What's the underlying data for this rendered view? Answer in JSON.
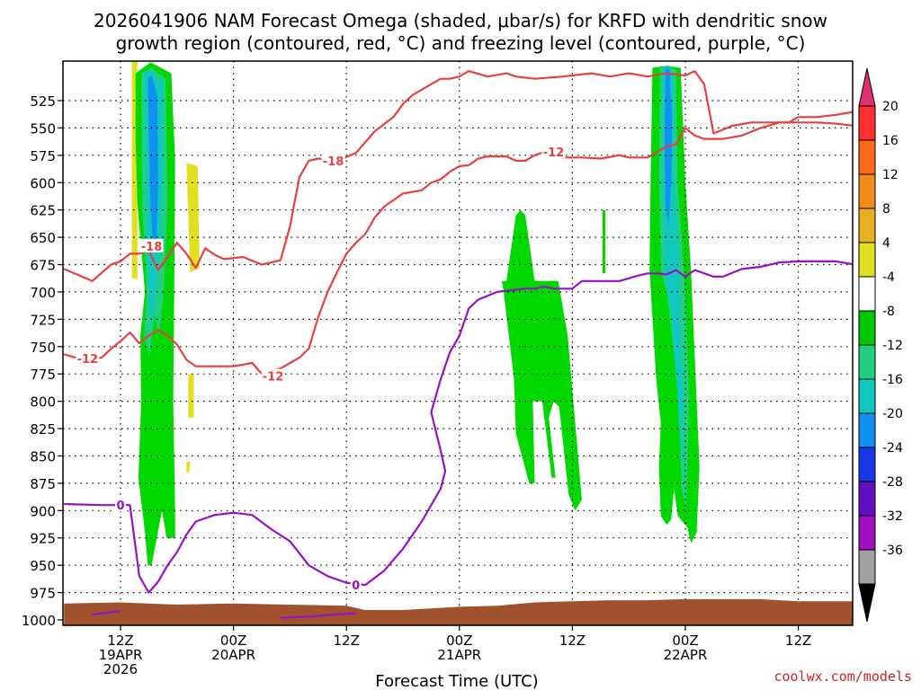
{
  "chart_data": {
    "type": "time-height cross section",
    "title_line1": "2026041906 NAM Forecast Omega (shaded, μbar/s) for KRFD with dendritic snow",
    "title_line2": "growth region (contoured, red, °C) and freezing level (contoured, purple, °C)",
    "xlabel": "Forecast Time (UTC)",
    "credit": "coolwx.com/models",
    "ylim": [
      1000,
      500
    ],
    "xlim_hours": [
      6,
      90
    ],
    "yticks": [
      525,
      550,
      575,
      600,
      625,
      650,
      675,
      700,
      725,
      750,
      775,
      800,
      825,
      850,
      875,
      900,
      925,
      950,
      975,
      1000
    ],
    "xticks": [
      {
        "hour": 12,
        "line1": "12Z",
        "line2": "19APR",
        "line3": "2026"
      },
      {
        "hour": 24,
        "line1": "00Z",
        "line2": "20APR",
        "line3": ""
      },
      {
        "hour": 36,
        "line1": "12Z",
        "line2": "",
        "line3": ""
      },
      {
        "hour": 48,
        "line1": "00Z",
        "line2": "21APR",
        "line3": ""
      },
      {
        "hour": 60,
        "line1": "12Z",
        "line2": "",
        "line3": ""
      },
      {
        "hour": 72,
        "line1": "00Z",
        "line2": "22APR",
        "line3": ""
      },
      {
        "hour": 84,
        "line1": "12Z",
        "line2": "",
        "line3": ""
      }
    ],
    "colorbar": {
      "labels": [
        "20",
        "16",
        "12",
        "8",
        "4",
        "-4",
        "-8",
        "-12",
        "-16",
        "-20",
        "-24",
        "-28",
        "-32",
        "-36"
      ],
      "bins": [
        "#e03070",
        "#ff3030",
        "#ff6a1a",
        "#f08a1a",
        "#e8b020",
        "#e0e020",
        "#ffffff",
        "#00c800",
        "#20d080",
        "#10c8c0",
        "#1090f0",
        "#1838e8",
        "#6010c0",
        "#a010c0",
        "#a0a0a0",
        "#000000"
      ]
    },
    "shading_colors": {
      "green": "#00d800",
      "green2": "#20d080",
      "teal": "#10c8c0",
      "blue": "#1090f0",
      "yellow": "#e0e020",
      "terrain": "#a0522d"
    },
    "contours": {
      "dgz_color": "#e84040",
      "freezing_color": "#9a10c8",
      "labels_red": [
        "-18",
        "-18",
        "-12",
        "-12",
        "-12"
      ],
      "labels_purple": [
        "0",
        "0"
      ],
      "upper_red": [
        [
          6,
          679
        ],
        [
          9,
          690
        ],
        [
          11,
          675
        ],
        [
          12,
          672
        ],
        [
          13,
          665
        ],
        [
          14,
          665
        ],
        [
          15,
          662
        ],
        [
          16,
          680
        ],
        [
          18,
          655
        ],
        [
          19,
          665
        ],
        [
          20,
          678
        ],
        [
          21,
          660
        ],
        [
          22,
          666
        ],
        [
          23,
          670
        ],
        [
          25,
          668
        ],
        [
          27,
          675
        ],
        [
          29,
          671
        ],
        [
          30,
          640
        ],
        [
          31,
          595
        ],
        [
          32,
          580
        ],
        [
          33,
          578
        ],
        [
          35,
          580
        ],
        [
          37,
          573
        ],
        [
          39,
          553
        ],
        [
          41,
          540
        ],
        [
          42,
          528
        ],
        [
          43,
          520
        ],
        [
          45,
          510
        ],
        [
          46,
          505
        ],
        [
          47,
          505
        ],
        [
          48,
          503
        ],
        [
          49,
          498
        ],
        [
          51,
          503
        ],
        [
          53,
          500
        ],
        [
          54,
          503
        ],
        [
          56,
          505
        ],
        [
          59,
          503
        ],
        [
          62,
          500
        ],
        [
          64,
          503
        ],
        [
          66,
          500
        ],
        [
          68,
          503
        ],
        [
          70,
          500
        ],
        [
          72,
          502
        ],
        [
          73,
          498
        ],
        [
          74,
          510
        ],
        [
          75,
          555
        ],
        [
          77,
          548
        ],
        [
          79,
          545
        ],
        [
          81,
          545
        ],
        [
          83,
          545
        ],
        [
          84,
          540
        ],
        [
          86,
          540
        ],
        [
          88,
          538
        ],
        [
          90,
          535
        ]
      ],
      "lower_red": [
        [
          6,
          757
        ],
        [
          8,
          762
        ],
        [
          10,
          760
        ],
        [
          11,
          752
        ],
        [
          12,
          745
        ],
        [
          13,
          737
        ],
        [
          14,
          747
        ],
        [
          15,
          740
        ],
        [
          16,
          735
        ],
        [
          17,
          740
        ],
        [
          18,
          748
        ],
        [
          19,
          762
        ],
        [
          20,
          768
        ],
        [
          22,
          768
        ],
        [
          24,
          768
        ],
        [
          26,
          765
        ],
        [
          27,
          775
        ],
        [
          29,
          770
        ],
        [
          31,
          760
        ],
        [
          32,
          752
        ],
        [
          33,
          723
        ],
        [
          34,
          700
        ],
        [
          35,
          682
        ],
        [
          36,
          665
        ],
        [
          37,
          655
        ],
        [
          38,
          647
        ],
        [
          39,
          632
        ],
        [
          40,
          622
        ],
        [
          42,
          610
        ],
        [
          44,
          607
        ],
        [
          45,
          600
        ],
        [
          46,
          597
        ],
        [
          47,
          590
        ],
        [
          48,
          585
        ],
        [
          49,
          584
        ],
        [
          50,
          578
        ],
        [
          51,
          576
        ],
        [
          53,
          576
        ],
        [
          54,
          580
        ],
        [
          55,
          580
        ],
        [
          56,
          575
        ],
        [
          57,
          572
        ],
        [
          58,
          576
        ],
        [
          59,
          577
        ],
        [
          61,
          577
        ],
        [
          63,
          578
        ],
        [
          65,
          575
        ],
        [
          66,
          577
        ],
        [
          68,
          577
        ],
        [
          70,
          567
        ],
        [
          71,
          565
        ],
        [
          72,
          550
        ],
        [
          73,
          557
        ],
        [
          74,
          560
        ],
        [
          76,
          560
        ],
        [
          78,
          557
        ],
        [
          80,
          550
        ],
        [
          82,
          545
        ],
        [
          84,
          545
        ],
        [
          86,
          545
        ],
        [
          88,
          546
        ],
        [
          90,
          548
        ]
      ],
      "freezing": [
        [
          6,
          894
        ],
        [
          10,
          895
        ],
        [
          12,
          895
        ],
        [
          13,
          895
        ],
        [
          14,
          960
        ],
        [
          15,
          975
        ],
        [
          16,
          965
        ],
        [
          17,
          950
        ],
        [
          18,
          938
        ],
        [
          19,
          922
        ],
        [
          20,
          910
        ],
        [
          22,
          904
        ],
        [
          24,
          902
        ],
        [
          26,
          904
        ],
        [
          28,
          917
        ],
        [
          30,
          928
        ],
        [
          32,
          950
        ],
        [
          34,
          960
        ],
        [
          36,
          966
        ],
        [
          38,
          968
        ],
        [
          40,
          955
        ],
        [
          42,
          935
        ],
        [
          44,
          910
        ],
        [
          46,
          880
        ],
        [
          46.5,
          864
        ],
        [
          46,
          845
        ],
        [
          45,
          810
        ],
        [
          46,
          780
        ],
        [
          47,
          755
        ],
        [
          48,
          740
        ],
        [
          49,
          715
        ],
        [
          50,
          707
        ],
        [
          52,
          700
        ],
        [
          55,
          697
        ],
        [
          56,
          697
        ],
        [
          57,
          695
        ],
        [
          58,
          697
        ],
        [
          59,
          697
        ],
        [
          60,
          697
        ],
        [
          61,
          690
        ],
        [
          63,
          690
        ],
        [
          65,
          690
        ],
        [
          67,
          685
        ],
        [
          68,
          683
        ],
        [
          69,
          683
        ],
        [
          70,
          684
        ],
        [
          71,
          680
        ],
        [
          72,
          686
        ],
        [
          73,
          680
        ],
        [
          75,
          686
        ],
        [
          76,
          686
        ],
        [
          78,
          679
        ],
        [
          80,
          677
        ],
        [
          82,
          673
        ],
        [
          84,
          672
        ],
        [
          86,
          672
        ],
        [
          88,
          672
        ],
        [
          90,
          675
        ]
      ],
      "freezing_near_surface_1": [
        [
          9,
          995
        ],
        [
          12,
          992
        ]
      ],
      "freezing_near_surface_2": [
        [
          29,
          998
        ],
        [
          32,
          997
        ],
        [
          35,
          995
        ],
        [
          37,
          994
        ]
      ]
    }
  }
}
